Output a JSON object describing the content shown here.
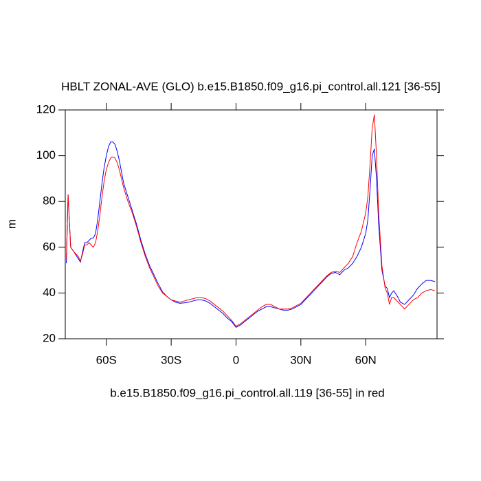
{
  "chart_data": {
    "type": "line",
    "title": "HBLT ZONAL-AVE (GLO) b.e15.B1850.f09_g16.pi_control.all.121 [36-55]",
    "ylabel": "m",
    "annotation": "b.e15.B1850.f09_g16.pi_control.all.119 [36-55] in red",
    "x": [
      -78.5,
      -77.7,
      -76.5,
      -75,
      -73,
      -72,
      -71,
      -70,
      -69,
      -68,
      -67,
      -66,
      -65,
      -64,
      -63,
      -62,
      -61,
      -60,
      -59,
      -58,
      -57,
      -56,
      -55,
      -54,
      -53,
      -52,
      -50,
      -48,
      -46,
      -44,
      -42,
      -40,
      -38,
      -36,
      -34,
      -32,
      -30,
      -28,
      -26,
      -24,
      -22,
      -20,
      -18,
      -16,
      -14,
      -12,
      -10,
      -8,
      -6,
      -4,
      -2,
      0,
      2,
      4,
      6,
      8,
      10,
      12,
      14,
      16,
      18,
      20,
      22,
      24,
      26,
      28,
      30,
      32,
      34,
      36,
      38,
      40,
      42,
      44,
      46,
      48,
      50,
      52,
      54,
      56,
      58,
      60,
      61,
      62,
      63,
      64,
      65,
      66,
      67.5,
      69,
      70,
      71,
      72,
      73,
      75,
      76,
      78,
      80,
      82,
      84,
      86,
      88,
      90,
      92
    ],
    "series": [
      {
        "color": "#0000ff",
        "values": [
          53,
          83,
          60,
          58,
          55,
          53.5,
          58,
          62,
          62,
          63,
          64,
          64,
          66,
          72,
          80,
          88,
          95,
          100,
          104,
          106,
          106,
          105,
          102,
          98,
          93,
          88,
          82,
          76,
          70,
          63,
          57,
          52,
          48,
          44,
          40.5,
          38.5,
          37,
          36,
          35.5,
          35.7,
          36,
          36.5,
          37,
          37,
          36.5,
          35.5,
          34,
          32.5,
          31,
          29,
          27.5,
          25,
          26,
          27.5,
          29,
          30.5,
          32,
          33,
          34,
          34,
          33.5,
          33,
          32.5,
          32.5,
          33,
          34,
          35,
          37,
          39,
          41,
          43,
          45,
          47,
          48.5,
          49,
          48,
          50,
          51,
          53,
          56,
          60,
          66,
          72,
          85,
          100,
          103,
          90,
          70,
          50,
          43,
          42,
          38,
          40,
          41,
          38,
          36,
          35,
          37,
          39,
          42,
          44,
          45.5,
          45.5,
          45
        ]
      },
      {
        "color": "#ff0000",
        "values": [
          55,
          83,
          60,
          58,
          56,
          54,
          57,
          61,
          61,
          62,
          61,
          60,
          62,
          67,
          74,
          82,
          89,
          94,
          97,
          99,
          99.5,
          99,
          97,
          94,
          90,
          86,
          80,
          75,
          69,
          62,
          56,
          51,
          47,
          43,
          40,
          38.5,
          37,
          36.5,
          36,
          36.5,
          37,
          37.5,
          38,
          38,
          37.5,
          36.5,
          35,
          33.5,
          32,
          30,
          28,
          25.5,
          26.5,
          28,
          29.5,
          31,
          32.5,
          34,
          35,
          35,
          34,
          33,
          33,
          33,
          33.5,
          34.5,
          35.5,
          37.5,
          39.5,
          41.5,
          43.5,
          45.5,
          47.5,
          49,
          49.5,
          49,
          51,
          53,
          56,
          62,
          67,
          75,
          82,
          96,
          112,
          118,
          100,
          75,
          52,
          42,
          40,
          35,
          38,
          38,
          36,
          35,
          33,
          35,
          37,
          38,
          40,
          41,
          41.5,
          41
        ]
      }
    ],
    "xlim": [
      -79,
      93
    ],
    "xticks": [
      {
        "value": -60,
        "label": "60S"
      },
      {
        "value": -30,
        "label": "30S"
      },
      0,
      {
        "value": 30,
        "label": "30N"
      },
      {
        "value": 60,
        "label": "60N"
      }
    ],
    "ylim": [
      20,
      120
    ],
    "yticks": [
      20,
      40,
      60,
      80,
      100,
      120
    ]
  }
}
